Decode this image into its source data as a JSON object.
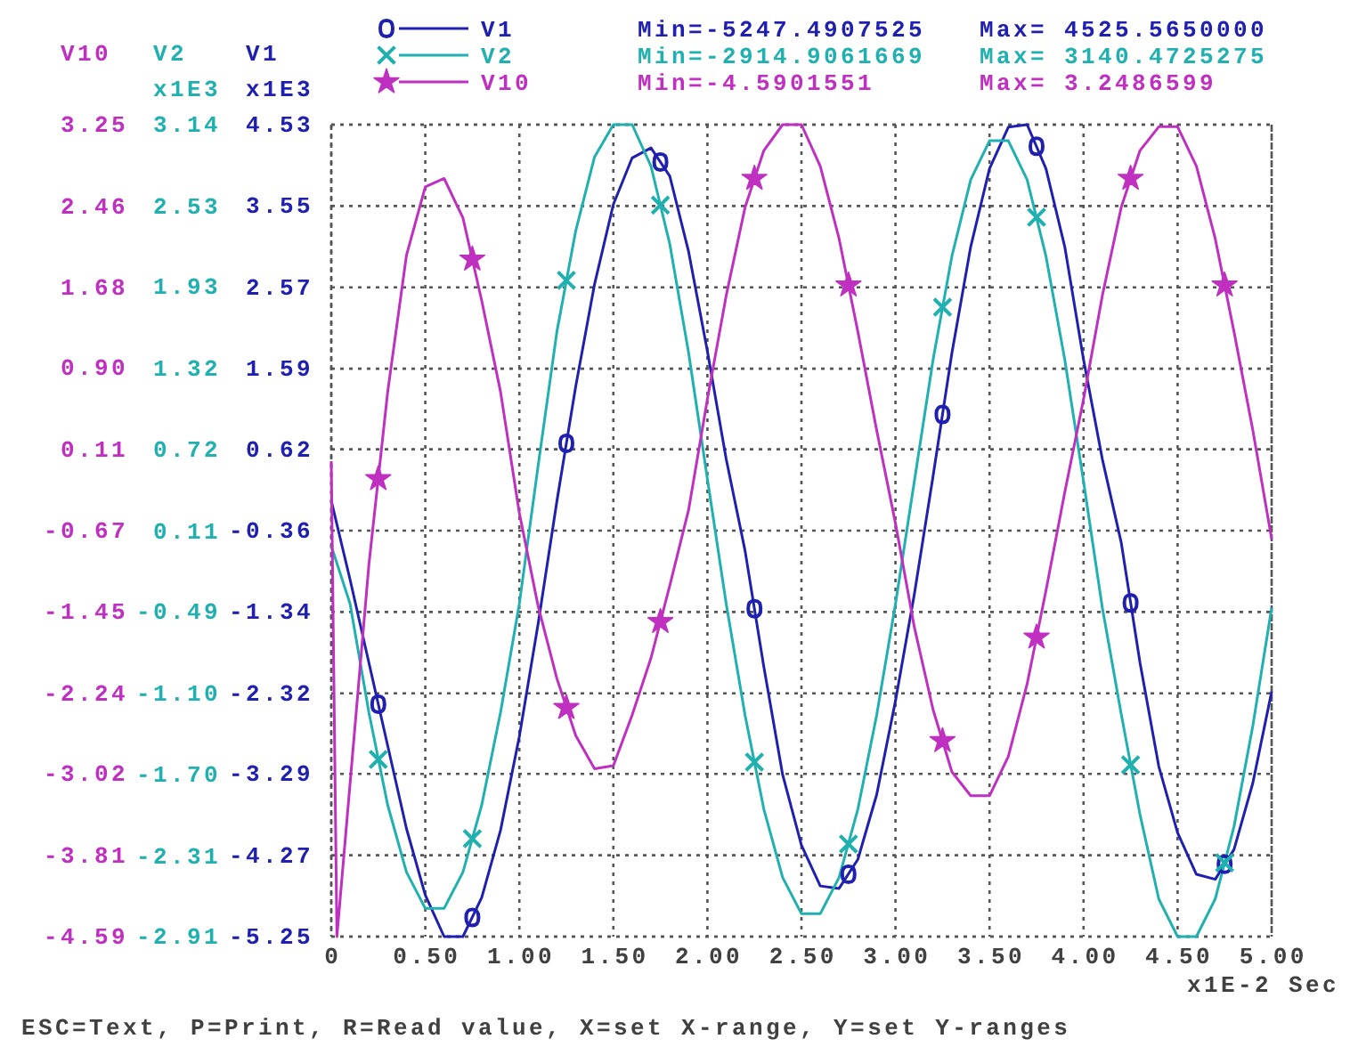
{
  "chart_data": {
    "type": "line",
    "x": [
      0,
      0.1,
      0.2,
      0.3,
      0.4,
      0.5,
      0.6,
      0.7,
      0.8,
      0.9,
      1,
      1.1,
      1.2,
      1.3,
      1.4,
      1.5,
      1.6,
      1.7,
      1.8,
      1.9,
      2,
      2.1,
      2.2,
      2.3,
      2.4,
      2.5,
      2.6,
      2.7,
      2.8,
      2.9,
      3,
      3.1,
      3.2,
      3.3,
      3.4,
      3.5,
      3.6,
      3.7,
      3.8,
      3.9,
      4,
      4.1,
      4.2,
      4.3,
      4.4,
      4.5,
      4.6,
      4.7,
      4.8,
      4.9,
      5
    ],
    "xlim": [
      0,
      5
    ],
    "xticks": [
      0,
      {
        "value": 0.5,
        "label": "0.50"
      },
      {
        "value": 1,
        "label": "1.00"
      },
      {
        "value": 1.5,
        "label": "1.50"
      },
      {
        "value": 2,
        "label": "2.00"
      },
      {
        "value": 2.5,
        "label": "2.50"
      },
      {
        "value": 3,
        "label": "3.00"
      },
      {
        "value": 3.5,
        "label": "3.50"
      },
      {
        "value": 4,
        "label": "4.00"
      },
      {
        "value": 4.5,
        "label": "4.50"
      },
      {
        "value": 5,
        "label": "5.00"
      }
    ],
    "xlabel": "x1E-2 Sec",
    "ylim": [
      -5.25,
      4.53
    ],
    "yticks": [
      -5.25,
      -4.27,
      -3.29,
      -2.32,
      -1.34,
      -0.36,
      0.62,
      1.59,
      2.57,
      3.55,
      4.53
    ],
    "ylabel": "V1 x1E3",
    "y2lim": [
      -2.91,
      3.14
    ],
    "y2ticks": [
      -2.91,
      -2.31,
      {
        "value": -1.7,
        "label": "-1.70"
      },
      {
        "value": -1.1,
        "label": "-1.10"
      },
      -0.49,
      0.11,
      0.72,
      1.32,
      1.93,
      2.53,
      3.14
    ],
    "y2label": "V2 x1E3",
    "y3lim": [
      -4.59,
      3.25
    ],
    "y3ticks": [
      -4.59,
      -3.81,
      -3.02,
      -2.24,
      -1.45,
      -0.67,
      0.11,
      {
        "value": 0.9,
        "label": "0.90"
      },
      1.68,
      2.46,
      3.25
    ],
    "y3label": "V10",
    "series": [
      {
        "name": "V1",
        "color": "#2020b0",
        "values": [
          0,
          -0.95,
          -1.95,
          -2.95,
          -3.95,
          -4.75,
          -5.25,
          -5.25,
          -4.78,
          -3.97,
          -2.84,
          -1.48,
          0,
          1.38,
          2.61,
          3.57,
          4.13,
          4.25,
          3.91,
          3.0,
          1.8,
          0.5,
          -0.6,
          -2.0,
          -3.3,
          -4.15,
          -4.64,
          -4.67,
          -4.32,
          -3.54,
          -2.41,
          -1.13,
          0.3,
          1.78,
          3.06,
          4.0,
          4.5,
          4.53,
          4.0,
          3.06,
          1.7,
          0.5,
          -0.5,
          -1.95,
          -3.2,
          -4.0,
          -4.5,
          -4.56,
          -4.2,
          -3.4,
          -2.3
        ]
      },
      {
        "name": "V2",
        "color": "#20b0b0",
        "axis": "y2",
        "values": [
          0,
          -0.43,
          -1.24,
          -1.93,
          -2.43,
          -2.7,
          -2.7,
          -2.43,
          -1.93,
          -1.24,
          -0.43,
          0.6,
          1.6,
          2.35,
          2.9,
          3.14,
          3.14,
          2.83,
          2.25,
          1.44,
          0.5,
          -0.43,
          -1.26,
          -1.96,
          -2.47,
          -2.74,
          -2.74,
          -2.47,
          -1.96,
          -1.26,
          -0.43,
          0.48,
          1.39,
          2.16,
          2.73,
          3.02,
          3.02,
          2.73,
          2.16,
          1.39,
          0.48,
          -0.46,
          -1.25,
          -2.0,
          -2.63,
          -2.91,
          -2.91,
          -2.63,
          -2.09,
          -1.34,
          -0.46
        ]
      },
      {
        "name": "V10",
        "color": "#c030c0",
        "axis": "y3",
        "x": [
          0,
          0.03,
          0.2,
          0.3,
          0.4,
          0.5,
          0.6,
          0.7,
          0.8,
          0.9,
          1,
          1.1,
          1.2,
          1.3,
          1.4,
          1.5,
          1.6,
          1.7,
          1.8,
          1.9,
          2,
          2.1,
          2.2,
          2.3,
          2.4,
          2.5,
          2.6,
          2.7,
          2.8,
          2.9,
          3,
          3.1,
          3.2,
          3.3,
          3.4,
          3.5,
          3.6,
          3.7,
          3.8,
          3.9,
          4,
          4.1,
          4.2,
          4.3,
          4.4,
          4.5,
          4.6,
          4.7,
          4.8,
          4.9,
          5
        ],
        "values": [
          0,
          -4.59,
          -1.0,
          0.67,
          1.99,
          2.65,
          2.73,
          2.35,
          1.55,
          0.67,
          -0.5,
          -1.4,
          -2.1,
          -2.65,
          -2.97,
          -2.94,
          -2.45,
          -1.9,
          -1.2,
          -0.47,
          0.6,
          1.6,
          2.45,
          3.0,
          3.25,
          3.25,
          2.85,
          2.15,
          1.25,
          0.3,
          -0.6,
          -1.6,
          -2.4,
          -3.0,
          -3.23,
          -3.23,
          -2.85,
          -2.15,
          -1.25,
          -0.3,
          0.6,
          1.6,
          2.45,
          3.0,
          3.23,
          3.23,
          2.85,
          2.15,
          1.25,
          0.3,
          -0.75
        ]
      },
      {
        "type": "scatter",
        "color": "#2020b0",
        "marker": "circle",
        "x": [
          0.25,
          0.75,
          1.25,
          1.75,
          2.25,
          2.75,
          3.25,
          3.75,
          4.25,
          4.75
        ],
        "values": [
          -2.45,
          -5.02,
          0.69,
          4.08,
          -1.3,
          -4.5,
          1.04,
          4.27,
          -1.23,
          -4.38
        ]
      },
      {
        "type": "scatter",
        "color": "#20b0b0",
        "axis": "y2",
        "marker": "cross",
        "x": [
          0.25,
          0.75,
          1.25,
          1.75,
          2.25,
          2.75,
          3.25,
          3.75,
          4.25,
          4.75
        ],
        "values": [
          -1.59,
          -2.18,
          1.98,
          2.54,
          -1.61,
          -2.22,
          1.78,
          2.45,
          -1.63,
          -2.36
        ]
      },
      {
        "type": "scatter",
        "color": "#c030c0",
        "axis": "y3",
        "marker": "star",
        "x": [
          0.25,
          0.75,
          1.25,
          1.75,
          2.25,
          2.75,
          3.25,
          3.75,
          4.25,
          4.75
        ],
        "values": [
          -0.17,
          1.95,
          -2.38,
          -1.55,
          2.73,
          1.7,
          -2.7,
          -1.7,
          2.73,
          1.7
        ]
      }
    ],
    "grid": true,
    "legend": "top",
    "annotations": [
      "Min=-5247.4907525",
      "Max= 4525.5650000",
      "Min=-2914.9061669",
      "Max= 3140.4725275",
      "Min=-4.5901551",
      "Max= 3.2486599",
      "ESC=Text, P=Print, R=Read value, X=set X-range, Y=set Y-ranges"
    ]
  }
}
